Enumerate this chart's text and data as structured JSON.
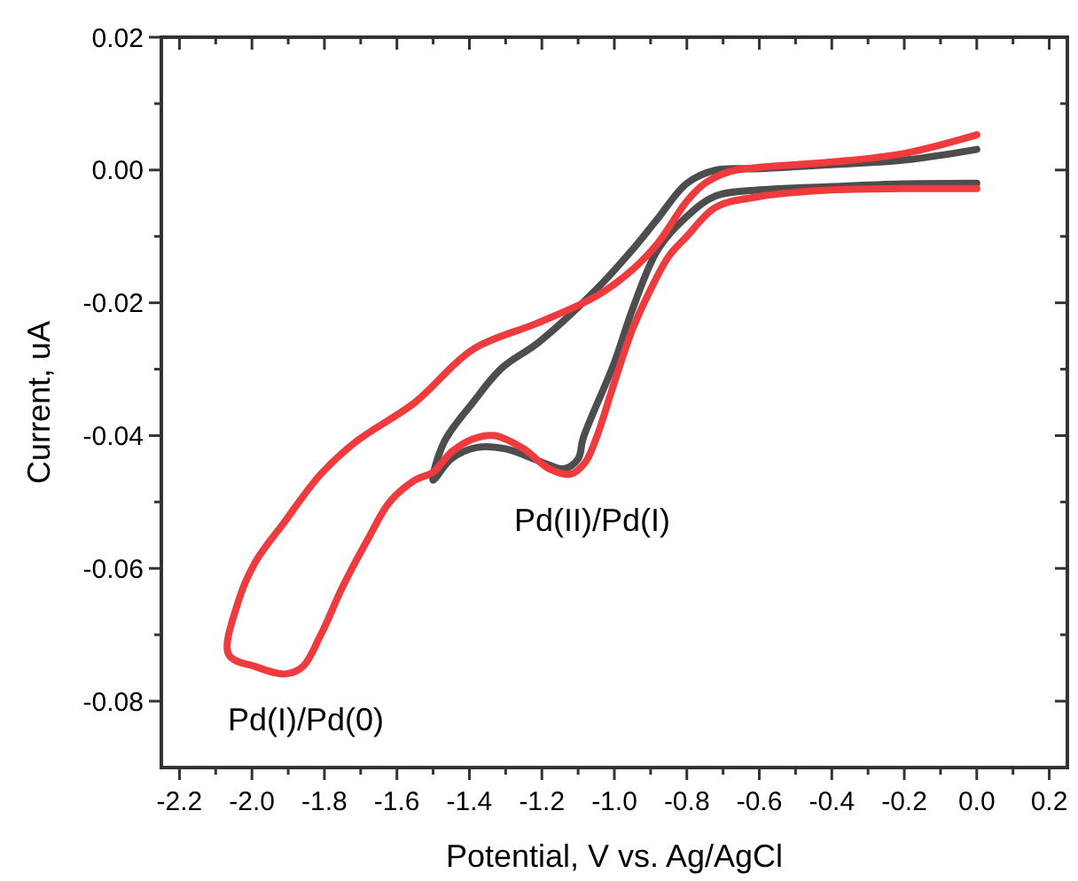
{
  "chart_data": {
    "type": "line",
    "xlabel": "Potential, V vs. Ag/AgCl",
    "ylabel": "Current, uA",
    "xlim": [
      -2.25,
      0.25
    ],
    "ylim": [
      -0.09,
      0.02
    ],
    "xticks": [
      {
        "value": -2.2,
        "label": "-2.2"
      },
      {
        "value": -2.1,
        "label": null
      },
      {
        "value": -2.0,
        "label": "-2.0"
      },
      {
        "value": -1.9,
        "label": null
      },
      {
        "value": -1.8,
        "label": "-1.8"
      },
      {
        "value": -1.7,
        "label": null
      },
      {
        "value": -1.6,
        "label": "-1.6"
      },
      {
        "value": -1.5,
        "label": null
      },
      {
        "value": -1.4,
        "label": "-1.4"
      },
      {
        "value": -1.3,
        "label": null
      },
      {
        "value": -1.2,
        "label": "-1.2"
      },
      {
        "value": -1.1,
        "label": null
      },
      {
        "value": -1.0,
        "label": "-1.0"
      },
      {
        "value": -0.9,
        "label": null
      },
      {
        "value": -0.8,
        "label": "-0.8"
      },
      {
        "value": -0.7,
        "label": null
      },
      {
        "value": -0.6,
        "label": "-0.6"
      },
      {
        "value": -0.5,
        "label": null
      },
      {
        "value": -0.4,
        "label": "-0.4"
      },
      {
        "value": -0.3,
        "label": null
      },
      {
        "value": -0.2,
        "label": "-0.2"
      },
      {
        "value": -0.1,
        "label": null
      },
      {
        "value": 0.0,
        "label": "0.0"
      },
      {
        "value": 0.1,
        "label": null
      },
      {
        "value": 0.2,
        "label": "0.2"
      }
    ],
    "yticks": [
      {
        "value": -0.08,
        "label": "-0.08"
      },
      {
        "value": -0.07,
        "label": null
      },
      {
        "value": -0.06,
        "label": "-0.06"
      },
      {
        "value": -0.05,
        "label": null
      },
      {
        "value": -0.04,
        "label": "-0.04"
      },
      {
        "value": -0.03,
        "label": null
      },
      {
        "value": -0.02,
        "label": "-0.02"
      },
      {
        "value": -0.01,
        "label": null
      },
      {
        "value": 0.0,
        "label": "0.00"
      },
      {
        "value": 0.01,
        "label": null
      },
      {
        "value": 0.02,
        "label": "0.02"
      }
    ],
    "grid": false,
    "marker": "none",
    "line_style": "solid",
    "series": [
      {
        "color": "#4d4d4d",
        "x": [
          0,
          -0.2,
          -0.4,
          -0.6,
          -0.72,
          -0.8,
          -0.88,
          -0.95,
          -1.05,
          -1.21,
          -1.31,
          -1.39,
          -1.47,
          -1.5,
          -1.45,
          -1.38,
          -1.3,
          -1.2,
          -1.14,
          -1.1,
          -1.086,
          -1.0,
          -0.95,
          -0.88,
          -0.8,
          -0.72,
          -0.6,
          -0.4,
          -0.2,
          0
        ],
        "values": [
          0.0031,
          0.0015,
          0.0008,
          0.0002,
          0.0,
          -0.002,
          -0.0073,
          -0.012,
          -0.018,
          -0.026,
          -0.0298,
          -0.035,
          -0.041,
          -0.0467,
          -0.0435,
          -0.0418,
          -0.042,
          -0.044,
          -0.045,
          -0.0435,
          -0.0404,
          -0.029,
          -0.021,
          -0.012,
          -0.007,
          -0.0039,
          -0.003,
          -0.0025,
          -0.0021,
          -0.002
        ]
      },
      {
        "color": "#ef3b3d",
        "x": [
          0,
          -0.2,
          -0.4,
          -0.6,
          -0.68,
          -0.75,
          -0.8,
          -0.88,
          -0.95,
          -1.05,
          -1.21,
          -1.39,
          -1.55,
          -1.71,
          -1.81,
          -1.91,
          -1.99,
          -2.04,
          -2.064,
          -1.99,
          -1.91,
          -1.86,
          -1.81,
          -1.75,
          -1.68,
          -1.62,
          -1.55,
          -1.5,
          -1.45,
          -1.39,
          -1.33,
          -1.25,
          -1.18,
          -1.12,
          -1.08,
          -1.05,
          -1.0,
          -0.95,
          -0.9,
          -0.85,
          -0.8,
          -0.72,
          -0.6,
          -0.4,
          -0.2,
          0
        ],
        "values": [
          0.0053,
          0.0025,
          0.0012,
          0.0004,
          -0.0002,
          -0.002,
          -0.0047,
          -0.011,
          -0.015,
          -0.019,
          -0.023,
          -0.027,
          -0.035,
          -0.0408,
          -0.0458,
          -0.053,
          -0.059,
          -0.0654,
          -0.073,
          -0.0748,
          -0.0759,
          -0.0748,
          -0.07,
          -0.0628,
          -0.0556,
          -0.05,
          -0.0467,
          -0.0455,
          -0.0425,
          -0.0405,
          -0.04,
          -0.042,
          -0.045,
          -0.0458,
          -0.044,
          -0.0404,
          -0.032,
          -0.024,
          -0.018,
          -0.013,
          -0.01,
          -0.0056,
          -0.004,
          -0.003,
          -0.0028,
          -0.0028
        ]
      }
    ],
    "annotations": [
      {
        "text": "Pd(II)/Pd(I)",
        "x": -1.12,
        "y": -0.0458
      },
      {
        "text": "Pd(I)/Pd(0)",
        "x": -1.91,
        "y": -0.0759
      }
    ]
  }
}
